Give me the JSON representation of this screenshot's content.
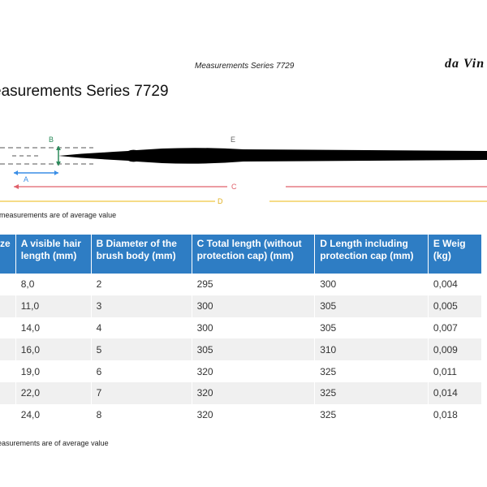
{
  "header": {
    "doc_title": "Measurements Series 7729",
    "brand": "da Vin"
  },
  "page_title": "easurements Series 7729",
  "diagram": {
    "labels": {
      "a": "A",
      "b": "B",
      "c": "C",
      "d": "D",
      "e": "E"
    },
    "colors": {
      "a": "#3a8ee6",
      "b": "#2a8a5a",
      "c": "#e0606a",
      "d": "#f0c840",
      "brush": "#000000"
    }
  },
  "note_top": "measurements are of average value",
  "table": {
    "headers": [
      "ze",
      "A visible hair length (mm)",
      "B Diameter of the brush body (mm)",
      "C Total length (without protection cap) (mm)",
      "D Length including protection cap (mm)",
      "E Weig (kg)"
    ],
    "rows": [
      [
        "",
        "8,0",
        "2",
        "295",
        "300",
        "0,004"
      ],
      [
        "",
        "11,0",
        "3",
        "300",
        "305",
        "0,005"
      ],
      [
        "",
        "14,0",
        "4",
        "300",
        "305",
        "0,007"
      ],
      [
        "",
        "16,0",
        "5",
        "305",
        "310",
        "0,009"
      ],
      [
        "",
        "19,0",
        "6",
        "320",
        "325",
        "0,011"
      ],
      [
        "",
        "22,0",
        "7",
        "320",
        "325",
        "0,014"
      ],
      [
        "",
        "24,0",
        "8",
        "320",
        "325",
        "0,018"
      ]
    ]
  },
  "note_bottom": "easurements are of average value"
}
